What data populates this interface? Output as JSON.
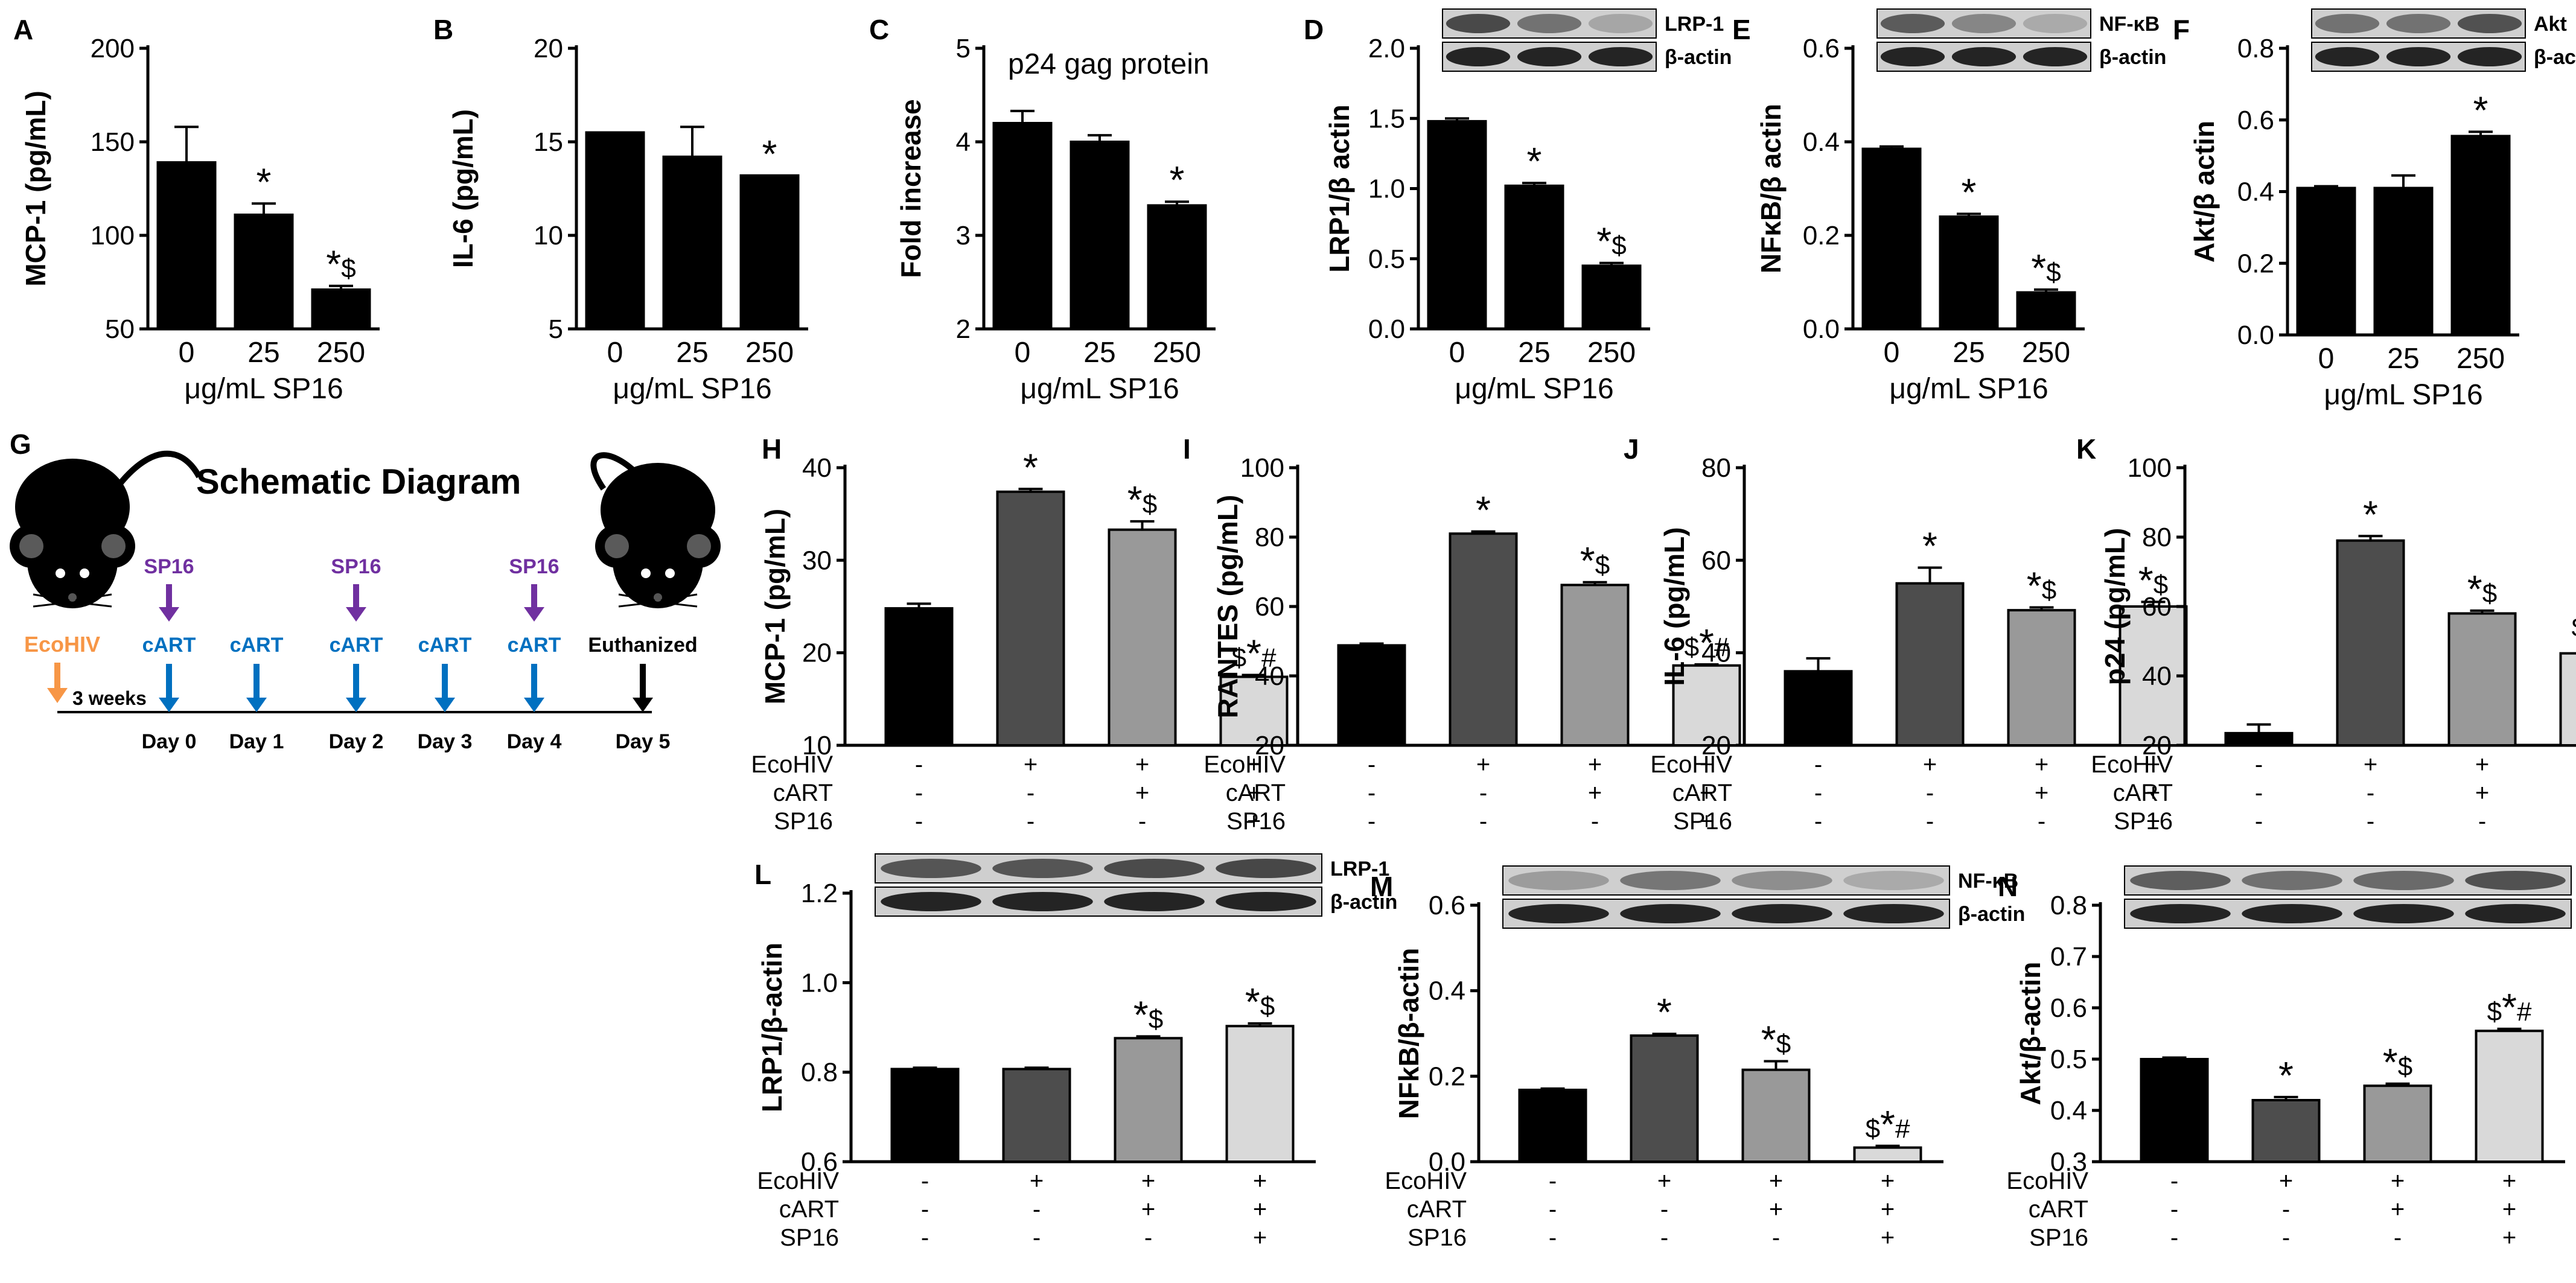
{
  "schematic": {
    "label": "G",
    "title": "Schematic Diagram",
    "infection": "EcoHIV",
    "gap": "3 weeks",
    "days": [
      "Day 0",
      "Day 1",
      "Day 2",
      "Day 3",
      "Day 4",
      "Day 5"
    ],
    "treatments": [
      {
        "day": 0,
        "sp16": "SP16",
        "cart": "cART"
      },
      {
        "day": 1,
        "sp16": "",
        "cart": "cART"
      },
      {
        "day": 2,
        "sp16": "SP16",
        "cart": "cART"
      },
      {
        "day": 3,
        "sp16": "",
        "cart": "cART"
      },
      {
        "day": 4,
        "sp16": "SP16",
        "cart": "cART"
      },
      {
        "day": 5,
        "sp16": "",
        "cart": "Euthanized"
      }
    ],
    "colors": {
      "ecohiv": "#f79646",
      "sp16": "#7030a0",
      "cart": "#0070c0",
      "end": "#000000"
    }
  },
  "chart_data": [
    {
      "label": "A",
      "type": "bar",
      "ylabel": "MCP-1 (pg/mL)",
      "ylim": [
        50,
        200
      ],
      "yticks": [
        "50",
        "100",
        "150",
        "200"
      ],
      "categories": [
        "0",
        "25",
        "250"
      ],
      "xlabel": "μg/mL SP16",
      "values": [
        139,
        111,
        71
      ],
      "errors": [
        19,
        6,
        2
      ],
      "sig": [
        "",
        "*",
        "*$"
      ],
      "colors": [
        "#000",
        "#000",
        "#000"
      ]
    },
    {
      "label": "B",
      "type": "bar",
      "ylabel": "IL-6 (pg/mL)",
      "ylim": [
        5,
        20
      ],
      "yticks": [
        "5",
        "10",
        "15",
        "20"
      ],
      "categories": [
        "0",
        "25",
        "250"
      ],
      "xlabel": "μg/mL SP16",
      "values": [
        15.5,
        14.2,
        13.2
      ],
      "errors": [
        0,
        1.6,
        0
      ],
      "sig": [
        "",
        "",
        "*"
      ],
      "colors": [
        "#000",
        "#000",
        "#000"
      ]
    },
    {
      "label": "C",
      "type": "bar",
      "ylabel": "Fold increase",
      "ylim": [
        2,
        5
      ],
      "yticks": [
        "2",
        "3",
        "4",
        "5"
      ],
      "categories": [
        "0",
        "25",
        "250"
      ],
      "xlabel": "μg/mL SP16",
      "title": "p24 gag protein",
      "values": [
        4.2,
        4.0,
        3.32
      ],
      "errors": [
        0.13,
        0.07,
        0.04
      ],
      "sig": [
        "",
        "",
        "*"
      ],
      "colors": [
        "#000",
        "#000",
        "#000"
      ]
    },
    {
      "label": "D",
      "type": "bar",
      "ylabel": "LRP1/β actin",
      "ylim": [
        0,
        2
      ],
      "yticks": [
        "0.0",
        "0.5",
        "1.0",
        "1.5",
        "2.0"
      ],
      "categories": [
        "0",
        "25",
        "250"
      ],
      "xlabel": "μg/mL SP16",
      "blot": [
        "LRP-1",
        "β-actin"
      ],
      "values": [
        1.48,
        1.02,
        0.45
      ],
      "errors": [
        0.02,
        0.02,
        0.02
      ],
      "sig": [
        "",
        "*",
        "*$"
      ],
      "colors": [
        "#000",
        "#000",
        "#000"
      ]
    },
    {
      "label": "E",
      "type": "bar",
      "ylabel": "NFκB/β actin",
      "ylim": [
        0,
        0.6
      ],
      "yticks": [
        "0.0",
        "0.2",
        "0.4",
        "0.6"
      ],
      "categories": [
        "0",
        "25",
        "250"
      ],
      "xlabel": "μg/mL SP16",
      "blot": [
        "NF-κB",
        "β-actin"
      ],
      "values": [
        0.385,
        0.24,
        0.078
      ],
      "errors": [
        0.005,
        0.006,
        0.006
      ],
      "sig": [
        "",
        "*",
        "*$"
      ],
      "colors": [
        "#000",
        "#000",
        "#000"
      ]
    },
    {
      "label": "F",
      "type": "bar",
      "ylabel": "Akt/β actin",
      "ylim": [
        0,
        0.8
      ],
      "yticks": [
        "0.0",
        "0.2",
        "0.4",
        "0.6",
        "0.8"
      ],
      "categories": [
        "0",
        "25",
        "250"
      ],
      "xlabel": "μg/mL SP16",
      "blot": [
        "Akt",
        "β-actin"
      ],
      "values": [
        0.41,
        0.41,
        0.555
      ],
      "errors": [
        0.005,
        0.035,
        0.012
      ],
      "sig": [
        "",
        "",
        "*"
      ],
      "colors": [
        "#000",
        "#000",
        "#000"
      ]
    },
    {
      "label": "H",
      "type": "bar",
      "ylabel": "MCP-1 (pg/mL)",
      "ylim": [
        10,
        40
      ],
      "yticks": [
        "10",
        "20",
        "30",
        "40"
      ],
      "rows": [
        {
          "name": "EcoHIV",
          "marks": [
            "-",
            "+",
            "+",
            "+"
          ]
        },
        {
          "name": "cART",
          "marks": [
            "-",
            "-",
            "+",
            "+"
          ]
        },
        {
          "name": "SP16",
          "marks": [
            "-",
            "-",
            "-",
            "+"
          ]
        }
      ],
      "values": [
        24.8,
        37.4,
        33.3,
        17.4
      ],
      "errors": [
        0.5,
        0.3,
        0.9,
        0.2
      ],
      "sig": [
        "",
        "*",
        "*$",
        "$*#"
      ],
      "colors": [
        "#000000",
        "#4d4d4d",
        "#999999",
        "#d9d9d9"
      ]
    },
    {
      "label": "I",
      "type": "bar",
      "ylabel": "RANTES (pg/mL)",
      "ylim": [
        20,
        100
      ],
      "yticks": [
        "20",
        "40",
        "60",
        "80",
        "100"
      ],
      "rows": [
        {
          "name": "EcoHIV",
          "marks": [
            "-",
            "+",
            "+",
            "+"
          ]
        },
        {
          "name": "cART",
          "marks": [
            "-",
            "-",
            "+",
            "+"
          ]
        },
        {
          "name": "SP16",
          "marks": [
            "-",
            "-",
            "-",
            "+"
          ]
        }
      ],
      "values": [
        48.8,
        81.0,
        66.2,
        43.0
      ],
      "errors": [
        0.5,
        0.6,
        0.8,
        0.3
      ],
      "sig": [
        "",
        "*",
        "*$",
        "$*#"
      ],
      "colors": [
        "#000000",
        "#4d4d4d",
        "#999999",
        "#d9d9d9"
      ]
    },
    {
      "label": "J",
      "type": "bar",
      "ylabel": "IL-6 (pg/mL)",
      "ylim": [
        20,
        80
      ],
      "yticks": [
        "20",
        "40",
        "60",
        "80"
      ],
      "rows": [
        {
          "name": "EcoHIV",
          "marks": [
            "-",
            "+",
            "+",
            "+"
          ]
        },
        {
          "name": "cART",
          "marks": [
            "-",
            "-",
            "+",
            "+"
          ]
        },
        {
          "name": "SP16",
          "marks": [
            "-",
            "-",
            "-",
            "+"
          ]
        }
      ],
      "values": [
        36.0,
        55.0,
        49.2,
        50.0
      ],
      "errors": [
        2.8,
        3.4,
        0.6,
        1.0
      ],
      "sig": [
        "",
        "*",
        "*$",
        "*$"
      ],
      "colors": [
        "#000000",
        "#4d4d4d",
        "#999999",
        "#d9d9d9"
      ]
    },
    {
      "label": "K",
      "type": "bar",
      "ylabel": "p24 (pg/mL)",
      "ylim": [
        20,
        100
      ],
      "yticks": [
        "20",
        "40",
        "60",
        "80",
        "100"
      ],
      "rows": [
        {
          "name": "EcoHIV",
          "marks": [
            "-",
            "+",
            "+",
            "+"
          ]
        },
        {
          "name": "cART",
          "marks": [
            "-",
            "-",
            "+",
            "+"
          ]
        },
        {
          "name": "SP16",
          "marks": [
            "-",
            "-",
            "-",
            "+"
          ]
        }
      ],
      "values": [
        23.5,
        79.0,
        58.0,
        46.5
      ],
      "errors": [
        2.5,
        1.3,
        0.8,
        2.5
      ],
      "sig": [
        "",
        "*",
        "*$",
        "$*#"
      ],
      "colors": [
        "#000000",
        "#4d4d4d",
        "#999999",
        "#d9d9d9"
      ]
    },
    {
      "label": "L",
      "type": "bar",
      "ylabel": "LRP1/β-actin",
      "ylim": [
        0.6,
        1.2
      ],
      "yticks": [
        "0.6",
        "0.8",
        "1.0",
        "1.2"
      ],
      "blot": [
        "LRP-1",
        "β-actin"
      ],
      "rows": [
        {
          "name": "EcoHIV",
          "marks": [
            "-",
            "+",
            "+",
            "+"
          ]
        },
        {
          "name": "cART",
          "marks": [
            "-",
            "-",
            "+",
            "+"
          ]
        },
        {
          "name": "SP16",
          "marks": [
            "-",
            "-",
            "-",
            "+"
          ]
        }
      ],
      "values": [
        0.807,
        0.807,
        0.876,
        0.903
      ],
      "errors": [
        0.003,
        0.003,
        0.004,
        0.006
      ],
      "sig": [
        "",
        "",
        "*$",
        "*$"
      ],
      "colors": [
        "#000000",
        "#4d4d4d",
        "#999999",
        "#d9d9d9"
      ]
    },
    {
      "label": "M",
      "type": "bar",
      "ylabel": "NFkB/β-actin",
      "ylim": [
        0,
        0.6
      ],
      "yticks": [
        "0.0",
        "0.2",
        "0.4",
        "0.6"
      ],
      "blot": [
        "NF-κB",
        "β-actin"
      ],
      "rows": [
        {
          "name": "EcoHIV",
          "marks": [
            "-",
            "+",
            "+",
            "+"
          ]
        },
        {
          "name": "cART",
          "marks": [
            "-",
            "-",
            "+",
            "+"
          ]
        },
        {
          "name": "SP16",
          "marks": [
            "-",
            "-",
            "-",
            "+"
          ]
        }
      ],
      "values": [
        0.168,
        0.295,
        0.215,
        0.033
      ],
      "errors": [
        0.003,
        0.004,
        0.02,
        0.004
      ],
      "sig": [
        "",
        "*",
        "*$",
        "$*#"
      ],
      "colors": [
        "#000000",
        "#4d4d4d",
        "#999999",
        "#d9d9d9"
      ]
    },
    {
      "label": "N",
      "type": "bar",
      "ylabel": "Akt/β-actin",
      "ylim": [
        0.3,
        0.8
      ],
      "yticks": [
        "0.3",
        "0.4",
        "0.5",
        "0.6",
        "0.7",
        "0.8"
      ],
      "blot": [
        "Akt",
        "β-actin"
      ],
      "rows": [
        {
          "name": "EcoHIV",
          "marks": [
            "-",
            "+",
            "+",
            "+"
          ]
        },
        {
          "name": "cART",
          "marks": [
            "-",
            "-",
            "+",
            "+"
          ]
        },
        {
          "name": "SP16",
          "marks": [
            "-",
            "-",
            "-",
            "+"
          ]
        }
      ],
      "values": [
        0.5,
        0.42,
        0.448,
        0.555
      ],
      "errors": [
        0.003,
        0.006,
        0.004,
        0.004
      ],
      "sig": [
        "",
        "*",
        "*$",
        "$*#"
      ],
      "colors": [
        "#000000",
        "#4d4d4d",
        "#999999",
        "#d9d9d9"
      ]
    }
  ]
}
